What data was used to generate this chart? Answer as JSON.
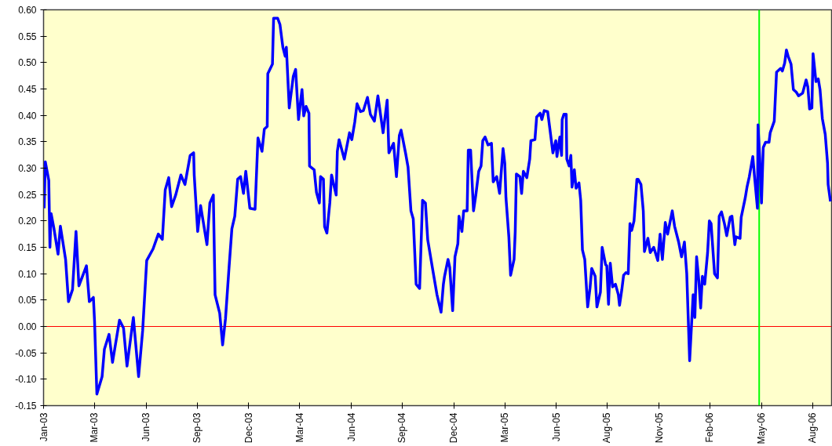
{
  "chart_data": {
    "type": "line",
    "x": [
      "2003-01-03",
      "2003-01-05",
      "2003-01-11",
      "2003-01-13",
      "2003-01-15",
      "2003-01-20",
      "2003-01-27",
      "2003-01-31",
      "2003-02-09",
      "2003-02-14",
      "2003-02-21",
      "2003-02-27",
      "2003-03-04",
      "2003-03-17",
      "2003-03-22",
      "2003-03-29",
      "2003-03-31",
      "2003-04-04",
      "2003-04-13",
      "2003-04-17",
      "2003-04-25",
      "2003-05-01",
      "2003-05-13",
      "2003-05-20",
      "2003-05-26",
      "2003-06-06",
      "2003-06-15",
      "2003-06-22",
      "2003-06-29",
      "2003-07-10",
      "2003-07-19",
      "2003-07-26",
      "2003-07-31",
      "2003-08-06",
      "2003-08-11",
      "2003-08-18",
      "2003-08-27",
      "2003-09-03",
      "2003-09-12",
      "2003-09-18",
      "2003-09-19",
      "2003-09-25",
      "2003-09-30",
      "2003-10-11",
      "2003-10-16",
      "2003-10-22",
      "2003-10-25",
      "2003-11-02",
      "2003-11-07",
      "2003-11-12",
      "2003-11-18",
      "2003-11-23",
      "2003-11-28",
      "2003-12-03",
      "2003-12-08",
      "2003-12-13",
      "2003-12-17",
      "2003-12-24",
      "2004-01-02",
      "2004-01-07",
      "2004-01-14",
      "2004-01-18",
      "2004-01-23",
      "2004-01-24",
      "2004-02-01",
      "2004-02-03",
      "2004-02-10",
      "2004-02-14",
      "2004-02-19",
      "2004-02-23",
      "2004-02-25",
      "2004-03-01",
      "2004-03-08",
      "2004-03-12",
      "2004-03-17",
      "2004-03-23",
      "2004-03-26",
      "2004-03-30",
      "2004-04-04",
      "2004-04-05",
      "2004-04-13",
      "2004-04-17",
      "2004-04-22",
      "2004-04-24",
      "2004-04-29",
      "2004-05-01",
      "2004-05-05",
      "2004-05-10",
      "2004-05-13",
      "2004-05-21",
      "2004-05-23",
      "2004-05-26",
      "2004-06-04",
      "2004-06-08",
      "2004-06-13",
      "2004-06-17",
      "2004-06-22",
      "2004-06-26",
      "2004-07-02",
      "2004-07-07",
      "2004-07-14",
      "2004-07-19",
      "2004-07-26",
      "2004-08-01",
      "2004-08-10",
      "2004-08-17",
      "2004-08-20",
      "2004-08-28",
      "2004-09-02",
      "2004-09-07",
      "2004-09-10",
      "2004-09-18",
      "2004-09-22",
      "2004-09-27",
      "2004-10-01",
      "2004-10-06",
      "2004-10-12",
      "2004-10-17",
      "2004-10-22",
      "2004-10-26",
      "2004-11-04",
      "2004-11-11",
      "2004-11-18",
      "2004-11-22",
      "2004-11-24",
      "2004-11-30",
      "2004-12-03",
      "2004-12-08",
      "2004-12-12",
      "2004-12-17",
      "2004-12-19",
      "2004-12-24",
      "2004-12-27",
      "2005-01-02",
      "2005-01-04",
      "2005-01-08",
      "2005-01-13",
      "2005-01-17",
      "2005-01-22",
      "2005-01-26",
      "2005-01-29",
      "2005-02-02",
      "2005-02-07",
      "2005-02-13",
      "2005-02-16",
      "2005-02-22",
      "2005-02-27",
      "2005-03-05",
      "2005-03-08",
      "2005-03-10",
      "2005-03-15",
      "2005-03-18",
      "2005-03-24",
      "2005-03-26",
      "2005-03-28",
      "2005-04-03",
      "2005-04-06",
      "2005-04-09",
      "2005-04-15",
      "2005-04-20",
      "2005-04-22",
      "2005-04-29",
      "2005-05-02",
      "2005-05-08",
      "2005-05-11",
      "2005-05-15",
      "2005-05-21",
      "2005-05-26",
      "2005-05-30",
      "2005-06-04",
      "2005-06-06",
      "2005-06-11",
      "2005-06-14",
      "2005-06-15",
      "2005-06-18",
      "2005-06-22",
      "2005-06-23",
      "2005-06-27",
      "2005-06-30",
      "2005-07-02",
      "2005-07-06",
      "2005-07-09",
      "2005-07-14",
      "2005-07-17",
      "2005-07-20",
      "2005-07-24",
      "2005-07-29",
      "2005-08-02",
      "2005-08-05",
      "2005-08-11",
      "2005-08-14",
      "2005-08-20",
      "2005-08-23",
      "2005-08-29",
      "2005-08-31",
      "2005-09-03",
      "2005-09-06",
      "2005-09-10",
      "2005-09-15",
      "2005-09-20",
      "2005-09-22",
      "2005-09-26",
      "2005-09-29",
      "2005-10-03",
      "2005-10-07",
      "2005-10-10",
      "2005-10-13",
      "2005-10-17",
      "2005-10-22",
      "2005-10-24",
      "2005-10-29",
      "2005-11-02",
      "2005-11-04",
      "2005-11-10",
      "2005-11-14",
      "2005-11-20",
      "2005-11-27",
      "2005-12-01",
      "2005-12-05",
      "2005-12-10",
      "2005-12-14",
      "2005-12-22",
      "2005-12-26",
      "2006-01-02",
      "2006-01-07",
      "2006-01-12",
      "2006-01-16",
      "2006-01-21",
      "2006-01-27",
      "2006-01-30",
      "2006-02-02",
      "2006-02-06",
      "2006-02-09",
      "2006-02-12",
      "2006-02-16",
      "2006-02-21",
      "2006-02-24",
      "2006-02-27",
      "2006-03-05",
      "2006-03-10",
      "2006-03-13",
      "2006-03-17",
      "2006-03-22",
      "2006-03-26",
      "2006-04-01",
      "2006-04-04",
      "2006-04-09",
      "2006-04-11",
      "2006-04-18",
      "2006-04-20",
      "2006-04-27",
      "2006-04-30",
      "2006-05-04",
      "2006-05-10",
      "2006-05-13",
      "2006-05-18",
      "2006-05-19",
      "2006-05-22",
      "2006-05-25",
      "2006-05-28",
      "2006-06-01",
      "2006-06-07",
      "2006-06-09",
      "2006-06-16",
      "2006-06-20",
      "2006-06-27",
      "2006-06-30",
      "2006-07-04",
      "2006-07-07",
      "2006-07-10",
      "2006-07-15",
      "2006-07-19",
      "2006-07-24",
      "2006-07-28",
      "2006-08-04",
      "2006-08-10",
      "2006-08-13",
      "2006-08-16",
      "2006-08-20",
      "2006-08-22",
      "2006-08-27",
      "2006-08-31",
      "2006-09-03",
      "2006-09-07",
      "2006-09-12",
      "2006-09-16",
      "2006-09-17",
      "2006-09-21"
    ],
    "series": [
      {
        "color": "#0000ff",
        "values": [
          0.224,
          0.312,
          0.277,
          0.15,
          0.214,
          0.185,
          0.137,
          0.19,
          0.127,
          0.047,
          0.07,
          0.18,
          0.077,
          0.115,
          0.047,
          0.055,
          0.01,
          -0.128,
          -0.095,
          -0.043,
          -0.015,
          -0.068,
          0.012,
          -0.003,
          -0.075,
          0.017,
          -0.095,
          -0.008,
          0.125,
          0.147,
          0.175,
          0.165,
          0.259,
          0.282,
          0.227,
          0.249,
          0.287,
          0.269,
          0.324,
          0.329,
          0.287,
          0.18,
          0.229,
          0.155,
          0.234,
          0.249,
          0.06,
          0.025,
          -0.035,
          0.015,
          0.11,
          0.185,
          0.209,
          0.279,
          0.284,
          0.252,
          0.294,
          0.224,
          0.222,
          0.357,
          0.332,
          0.374,
          0.379,
          0.479,
          0.497,
          0.584,
          0.584,
          0.572,
          0.529,
          0.512,
          0.529,
          0.414,
          0.474,
          0.487,
          0.392,
          0.449,
          0.399,
          0.417,
          0.404,
          0.304,
          0.297,
          0.254,
          0.234,
          0.284,
          0.279,
          0.189,
          0.177,
          0.234,
          0.287,
          0.249,
          0.332,
          0.354,
          0.317,
          0.339,
          0.367,
          0.354,
          0.387,
          0.422,
          0.407,
          0.409,
          0.434,
          0.402,
          0.389,
          0.437,
          0.367,
          0.429,
          0.329,
          0.347,
          0.284,
          0.362,
          0.372,
          0.327,
          0.302,
          0.219,
          0.204,
          0.08,
          0.072,
          0.239,
          0.234,
          0.164,
          0.105,
          0.06,
          0.027,
          0.08,
          0.095,
          0.127,
          0.112,
          0.03,
          0.132,
          0.157,
          0.209,
          0.18,
          0.219,
          0.219,
          0.334,
          0.334,
          0.219,
          0.249,
          0.294,
          0.304,
          0.352,
          0.359,
          0.344,
          0.347,
          0.274,
          0.284,
          0.252,
          0.337,
          0.309,
          0.244,
          0.17,
          0.097,
          0.127,
          0.18,
          0.289,
          0.284,
          0.252,
          0.294,
          0.282,
          0.317,
          0.352,
          0.354,
          0.397,
          0.404,
          0.392,
          0.409,
          0.407,
          0.364,
          0.329,
          0.352,
          0.322,
          0.359,
          0.324,
          0.392,
          0.402,
          0.402,
          0.317,
          0.304,
          0.324,
          0.264,
          0.297,
          0.262,
          0.272,
          0.239,
          0.145,
          0.127,
          0.037,
          0.072,
          0.11,
          0.095,
          0.037,
          0.065,
          0.15,
          0.117,
          0.115,
          0.042,
          0.12,
          0.075,
          0.08,
          0.06,
          0.04,
          0.07,
          0.097,
          0.102,
          0.1,
          0.195,
          0.182,
          0.2,
          0.279,
          0.279,
          0.269,
          0.219,
          0.142,
          0.167,
          0.14,
          0.15,
          0.125,
          0.175,
          0.127,
          0.197,
          0.175,
          0.219,
          0.19,
          0.16,
          0.132,
          0.16,
          0.1,
          -0.065,
          0.06,
          0.017,
          0.132,
          0.085,
          0.035,
          0.095,
          0.08,
          0.14,
          0.2,
          0.195,
          0.1,
          0.092,
          0.209,
          0.217,
          0.195,
          0.172,
          0.207,
          0.209,
          0.155,
          0.17,
          0.167,
          0.207,
          0.244,
          0.264,
          0.284,
          0.322,
          0.284,
          0.224,
          0.382,
          0.319,
          0.234,
          0.339,
          0.349,
          0.349,
          0.367,
          0.389,
          0.482,
          0.489,
          0.484,
          0.499,
          0.524,
          0.512,
          0.497,
          0.449,
          0.444,
          0.437,
          0.442,
          0.467,
          0.454,
          0.412,
          0.414,
          0.517,
          0.464,
          0.469,
          0.449,
          0.394,
          0.364,
          0.309,
          0.269,
          0.237
        ]
      }
    ],
    "xlim": [
      "2003-01-02",
      "2006-09-23"
    ],
    "ylim": [
      -0.15,
      0.6
    ],
    "xticks": [
      {
        "value": "2003-01-02",
        "label": "Jan-03"
      },
      {
        "value": "2003-03-31",
        "label": "Mar-03"
      },
      {
        "value": "2003-06-28",
        "label": "Jun-03"
      },
      {
        "value": "2003-09-24",
        "label": "Sep-03"
      },
      {
        "value": "2003-12-22",
        "label": "Dec-03"
      },
      {
        "value": "2004-03-19",
        "label": "Mar-04"
      },
      {
        "value": "2004-06-16",
        "label": "Jun-04"
      },
      {
        "value": "2004-09-12",
        "label": "Sep-04"
      },
      {
        "value": "2004-12-10",
        "label": "Dec-04"
      },
      {
        "value": "2005-03-08",
        "label": "Mar-05"
      },
      {
        "value": "2005-06-05",
        "label": "Jun-05"
      },
      {
        "value": "2005-08-31",
        "label": "Aug-05"
      },
      {
        "value": "2005-11-29",
        "label": "Nov-05"
      },
      {
        "value": "2006-02-25",
        "label": "Feb-06"
      },
      {
        "value": "2006-05-25",
        "label": "May-06"
      },
      {
        "value": "2006-08-21",
        "label": "Aug-06"
      }
    ],
    "yticks": [
      {
        "value": -0.15,
        "label": "-0.15"
      },
      {
        "value": -0.1,
        "label": "-0.10"
      },
      {
        "value": -0.05,
        "label": "-0.05"
      },
      {
        "value": 0,
        "label": "0.00"
      },
      {
        "value": 0.05,
        "label": "0.05"
      },
      {
        "value": 0.1,
        "label": "0.10"
      },
      {
        "value": 0.15,
        "label": "0.15"
      },
      {
        "value": 0.2,
        "label": "0.20"
      },
      {
        "value": 0.25,
        "label": "0.25"
      },
      {
        "value": 0.3,
        "label": "0.30"
      },
      {
        "value": 0.35,
        "label": "0.35"
      },
      {
        "value": 0.4,
        "label": "0.40"
      },
      {
        "value": 0.45,
        "label": "0.45"
      },
      {
        "value": 0.5,
        "label": "0.50"
      },
      {
        "value": 0.55,
        "label": "0.55"
      },
      {
        "value": 0.6,
        "label": "0.60"
      }
    ],
    "ref_lines": [
      {
        "axis": "y",
        "value": 0,
        "color": "#ff0000"
      },
      {
        "axis": "x",
        "value": "2006-05-21",
        "color": "#00ff00"
      }
    ]
  }
}
